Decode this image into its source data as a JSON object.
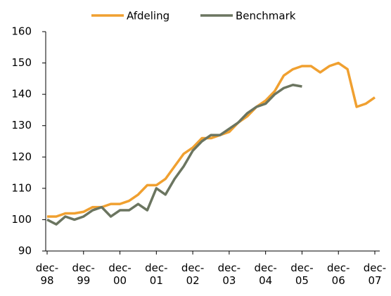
{
  "chart_data": {
    "type": "line",
    "categories": [
      "dec-\n98",
      null,
      null,
      null,
      "dec-\n99",
      null,
      null,
      null,
      "dec-\n00",
      null,
      null,
      null,
      "dec-\n01",
      null,
      null,
      null,
      "dec-\n02",
      null,
      null,
      null,
      "dec-\n03",
      null,
      null,
      null,
      "dec-\n04",
      null,
      null,
      null,
      "dec-\n05",
      null,
      null,
      null,
      "dec-\n06",
      null,
      null,
      null,
      "dec-\n07"
    ],
    "series": [
      {
        "name": "Afdeling",
        "color": "#f0a030",
        "values": [
          101,
          101,
          102,
          102,
          102.5,
          104,
          104,
          105,
          105,
          106,
          108,
          111,
          111,
          113,
          117,
          121,
          123,
          126,
          126,
          127,
          128,
          131,
          133,
          136,
          138,
          141,
          146,
          148,
          149,
          149,
          147,
          149,
          150,
          148,
          136,
          137,
          139
        ]
      },
      {
        "name": "Benchmark",
        "color": "#6b7560",
        "values": [
          100,
          98.5,
          101,
          100,
          101,
          103,
          104,
          101,
          103,
          103,
          105,
          103,
          110,
          108,
          113,
          117,
          122,
          125,
          127,
          127,
          129,
          131,
          134,
          136,
          137,
          140,
          142,
          143,
          142.5,
          null,
          null,
          null,
          null,
          null,
          null,
          null,
          null
        ]
      }
    ],
    "ylim": [
      90,
      160
    ],
    "yticks": [
      90,
      100,
      110,
      120,
      130,
      140,
      150,
      160
    ]
  }
}
